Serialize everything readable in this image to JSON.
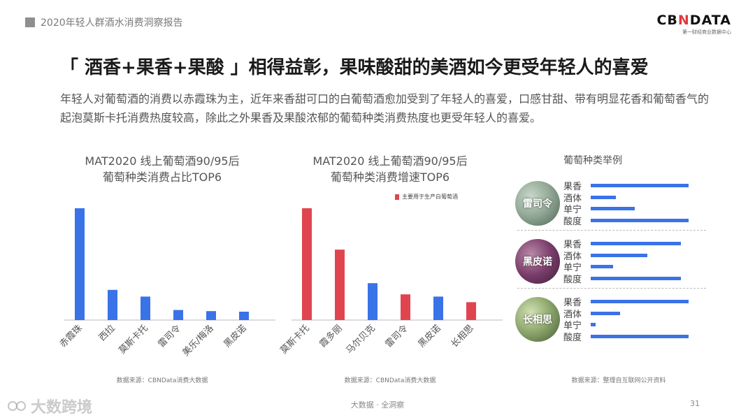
{
  "header": {
    "report_title": "2020年轻人群酒水消费洞察报告"
  },
  "logo": {
    "mark_a": "CB",
    "mark_n": "N",
    "mark_b": "DATA",
    "subtitle": "第一财经商业数据中心"
  },
  "slide": {
    "title": "「 酒香+果香+果酸 」相得益彰，果味酸甜的美酒如今更受年轻人的喜爱",
    "description": "年轻人对葡萄酒的消费以赤霞珠为主，近年来香甜可口的白葡萄酒愈加受到了年轻人的喜爱，口感甘甜、带有明显花香和葡萄香气的起泡莫斯卡托消费热度较高，除此之外果香及果酸浓郁的葡萄种类消费热度也更受年轻人的喜爱。"
  },
  "chart_data": [
    {
      "type": "bar",
      "title_line1": "MAT2020 线上葡萄酒90/95后",
      "title_line2": "葡萄种类消费占比TOP6",
      "categories": [
        "赤霞珠",
        "西拉",
        "莫斯卡托",
        "雷司令",
        "美乐/梅洛",
        "黑皮诺"
      ],
      "values": [
        100,
        27,
        21,
        9,
        8,
        7.5
      ],
      "colors": [
        "#3a72e8",
        "#3a72e8",
        "#3a72e8",
        "#3a72e8",
        "#3a72e8",
        "#3a72e8"
      ],
      "source": "数据来源：CBNData消费大数据"
    },
    {
      "type": "bar",
      "title_line1": "MAT2020 线上葡萄酒90/95后",
      "title_line2": "葡萄种类消费增速TOP6",
      "categories": [
        "莫斯卡托",
        "霞多丽",
        "马尔贝克",
        "雷司令",
        "黑皮诺",
        "长相思"
      ],
      "values": [
        100,
        63,
        33,
        23,
        21,
        16
      ],
      "colors": [
        "#e0454f",
        "#e0454f",
        "#3a72e8",
        "#e0454f",
        "#3a72e8",
        "#e0454f"
      ],
      "legend": {
        "label": "主要用于生产白葡萄酒",
        "color": "#e0454f"
      },
      "source": "数据来源：CBNData消费大数据"
    },
    {
      "type": "bar",
      "orientation": "horizontal",
      "title": "葡萄种类举例",
      "attributes": [
        "果香",
        "酒体",
        "单宁",
        "酸度"
      ],
      "series": [
        {
          "name": "雷司令",
          "values": [
            100,
            26,
            45,
            100
          ]
        },
        {
          "name": "黑皮诺",
          "values": [
            92,
            58,
            23,
            92
          ]
        },
        {
          "name": "长相思",
          "values": [
            100,
            30,
            5,
            100
          ]
        }
      ],
      "source": "数据来源：整理自互联网公开资料"
    }
  ],
  "footer": {
    "center": "大数据 · 全洞察",
    "page": "31",
    "watermark": "大数跨境"
  }
}
